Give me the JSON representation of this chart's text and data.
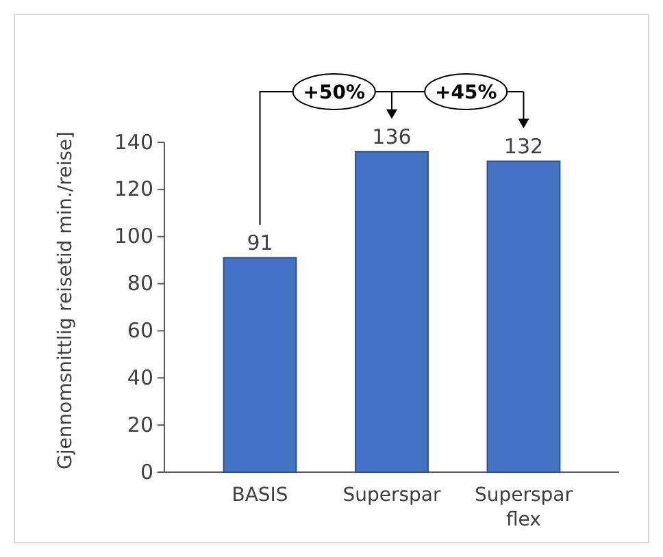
{
  "chart_data": {
    "type": "bar",
    "categories": [
      "BASIS",
      "Superspar",
      "Superspar flex"
    ],
    "values": [
      91,
      136,
      132
    ],
    "color": "#4472c4",
    "ylabel": "Gjennomsnittlig reisetid min./reise]",
    "ylim": [
      0,
      140
    ],
    "yticks": [
      0,
      20,
      40,
      60,
      80,
      100,
      120,
      140
    ],
    "data_labels": true,
    "grid": false,
    "annotations": [
      "+50%",
      "+45%"
    ]
  }
}
